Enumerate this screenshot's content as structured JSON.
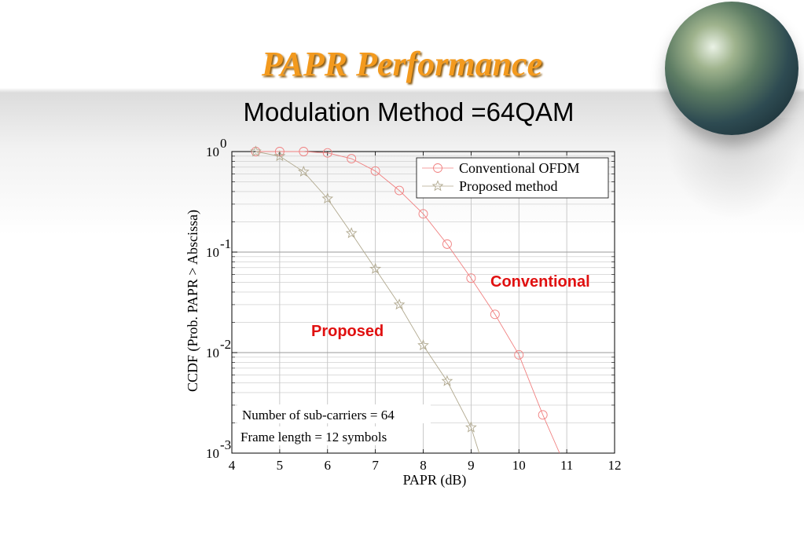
{
  "slide": {
    "title": "PAPR Performance",
    "subtitle": "Modulation Method =64QAM"
  },
  "chart_data": {
    "type": "line",
    "xlabel": "PAPR (dB)",
    "ylabel": "CCDF (Prob. PAPR > Abscissa)",
    "xlim": [
      4,
      12
    ],
    "ylim": [
      0.001,
      1
    ],
    "yscale": "log",
    "grid": true,
    "x_ticks": [
      "4",
      "5",
      "6",
      "7",
      "8",
      "9",
      "10",
      "11",
      "12"
    ],
    "y_ticks": [
      {
        "base": "10",
        "exp": "0"
      },
      {
        "base": "10",
        "exp": "-1"
      },
      {
        "base": "10",
        "exp": "-2"
      },
      {
        "base": "10",
        "exp": "-3"
      }
    ],
    "legend_position": "top-right",
    "series": [
      {
        "name": "Conventional OFDM",
        "marker": "circle",
        "color": "#f08080",
        "x": [
          4.5,
          5,
          5.5,
          6,
          6.5,
          7,
          7.5,
          8,
          8.5,
          9,
          9.5,
          10,
          10.5,
          10.85
        ],
        "y": [
          1.0,
          1.0,
          1.0,
          0.97,
          0.85,
          0.64,
          0.41,
          0.24,
          0.12,
          0.055,
          0.024,
          0.0095,
          0.0024,
          0.001
        ]
      },
      {
        "name": "Proposed method",
        "marker": "star",
        "color": "#b0a88e",
        "x": [
          4.5,
          5,
          5.5,
          6,
          6.5,
          7,
          7.5,
          8,
          8.5,
          9,
          9.17
        ],
        "y": [
          1.0,
          0.9,
          0.63,
          0.34,
          0.154,
          0.068,
          0.03,
          0.0118,
          0.0052,
          0.0018,
          0.001
        ]
      }
    ],
    "annotations": {
      "conventional": "Conventional",
      "proposed": "Proposed",
      "subcarriers": "Number of sub-carriers = 64",
      "frame_length": "Frame length = 12 symbols"
    }
  },
  "colors": {
    "title": "#f39a1e",
    "curve_label": "#e01010"
  }
}
